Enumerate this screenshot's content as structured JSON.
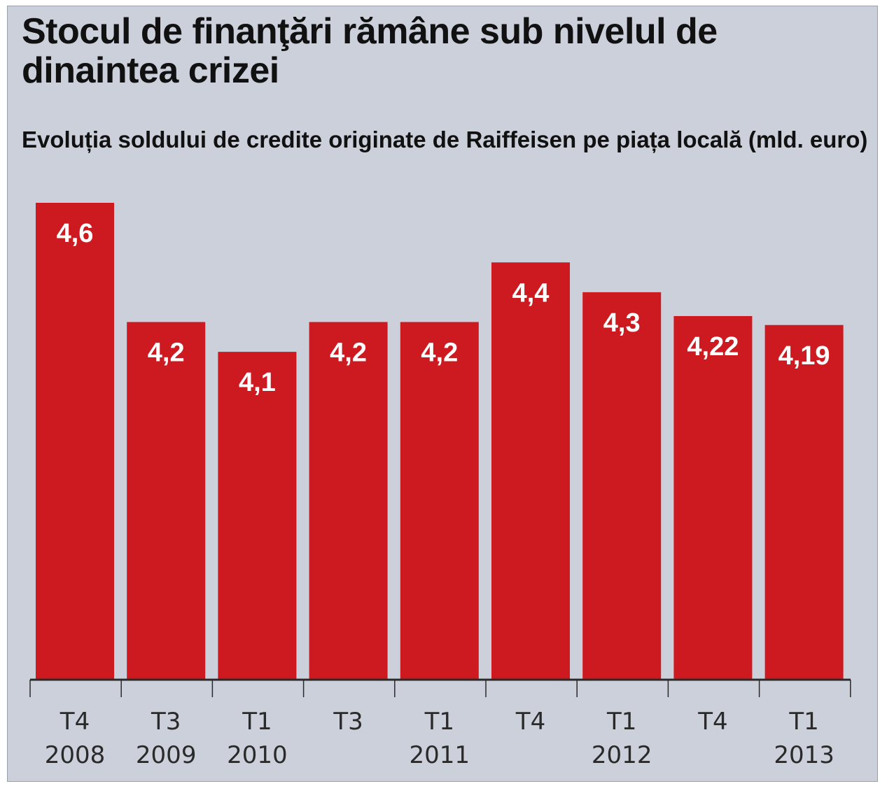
{
  "title": "Stocul de finanţări rămâne sub nivelul de dinaintea crizei",
  "subtitle": "Evoluția soldului de credite originate de Raiffeisen pe piața locală (mld. euro)",
  "colors": {
    "background": "#cbd0da",
    "bar": "#cc1a20",
    "value_label": "#ffffff",
    "text": "#111111"
  },
  "chart_data": {
    "type": "bar",
    "title": "Stocul de finanţări rămâne sub nivelul de dinaintea crizei",
    "subtitle": "Evoluția soldului de credite originate de Raiffeisen pe piața locală (mld. euro)",
    "categories": [
      [
        "T4",
        "2008"
      ],
      [
        "T3",
        "2009"
      ],
      [
        "T1",
        "2010"
      ],
      [
        "T3",
        ""
      ],
      [
        "T1",
        "2011"
      ],
      [
        "T4",
        ""
      ],
      [
        "T1",
        "2012"
      ],
      [
        "T4",
        ""
      ],
      [
        "T1",
        "2013"
      ]
    ],
    "values": [
      4.6,
      4.2,
      4.1,
      4.2,
      4.2,
      4.4,
      4.3,
      4.22,
      4.19
    ],
    "value_labels": [
      "4,6",
      "4,2",
      "4,1",
      "4,2",
      "4,2",
      "4,4",
      "4,3",
      "4,22",
      "4,19"
    ],
    "xlabel": "",
    "ylabel": "",
    "ylim": [
      3.0,
      4.6
    ],
    "grid": false,
    "legend": "none"
  }
}
